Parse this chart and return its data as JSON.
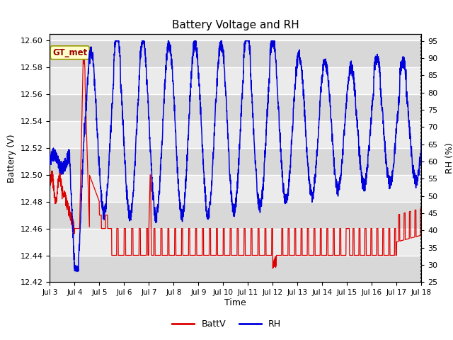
{
  "title": "Battery Voltage and RH",
  "xlabel": "Time",
  "ylabel_left": "Battery (V)",
  "ylabel_right": "RH (%)",
  "ylim_left": [
    12.42,
    12.605
  ],
  "ylim_right": [
    25,
    97
  ],
  "yticks_left": [
    12.42,
    12.44,
    12.46,
    12.48,
    12.5,
    12.52,
    12.54,
    12.56,
    12.58,
    12.6
  ],
  "yticks_right": [
    25,
    30,
    35,
    40,
    45,
    50,
    55,
    60,
    65,
    70,
    75,
    80,
    85,
    90,
    95
  ],
  "xtick_labels": [
    "Jul 3",
    "Jul 4",
    "Jul 5",
    "Jul 6",
    "Jul 7",
    "Jul 8",
    "Jul 9",
    "Jul 10",
    "Jul 11",
    "Jul 12",
    "Jul 13",
    "Jul 14",
    "Jul 15",
    "Jul 16",
    "Jul 17",
    "Jul 18"
  ],
  "batt_color": "#dd0000",
  "rh_color": "#0000dd",
  "legend_label_batt": "BattV",
  "legend_label_rh": "RH",
  "annotation_text": "GT_met",
  "annotation_bg": "#ffffcc",
  "annotation_border": "#999900",
  "bg_color": "#ffffff",
  "plot_bg_color": "#ebebeb",
  "grid_color": "#ffffff",
  "band_color_dark": "#d8d8d8",
  "band_color_light": "#ebebeb"
}
